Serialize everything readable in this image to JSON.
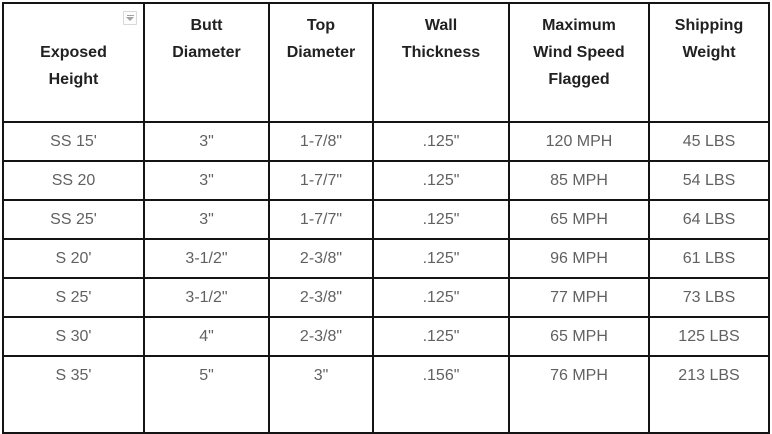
{
  "table": {
    "headers": [
      "Exposed\nHeight",
      "Butt\nDiameter",
      "Top\nDiameter",
      "Wall\nThickness",
      "Maximum\nWind Speed\nFlagged",
      "Shipping\nWeight"
    ],
    "rows": [
      [
        "SS 15'",
        "3\"",
        "1-7/8\"",
        ".125\"",
        "120 MPH",
        "45 LBS"
      ],
      [
        "SS 20",
        "3\"",
        "1-7/7\"",
        ".125\"",
        "85 MPH",
        "54 LBS"
      ],
      [
        "SS 25'",
        "3\"",
        "1-7/7\"",
        ".125\"",
        "65 MPH",
        "64 LBS"
      ],
      [
        "S 20'",
        "3-1/2\"",
        "2-3/8\"",
        ".125\"",
        "96 MPH",
        "61 LBS"
      ],
      [
        "S 25'",
        "3-1/2\"",
        "2-3/8\"",
        ".125\"",
        "77 MPH",
        "73 LBS"
      ],
      [
        "S 30'",
        "4\"",
        "2-3/8\"",
        ".125\"",
        "65 MPH",
        "125 LBS"
      ],
      [
        "S 35'",
        "5\"",
        "3\"",
        ".156\"",
        "76 MPH",
        "213 LBS"
      ]
    ],
    "icons": {
      "header_filter": "filter-dropdown-icon"
    },
    "colors": {
      "border": "#141414",
      "header_text": "#212121",
      "body_text": "#616161",
      "icon_border": "#d8d8d8",
      "icon_glyph": "#a3a3a3",
      "background": "#ffffff"
    }
  }
}
